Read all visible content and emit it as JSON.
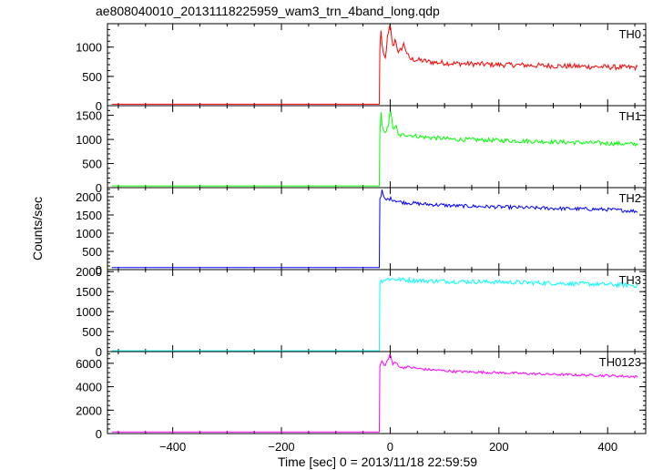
{
  "chart_data": {
    "type": "line",
    "title": "ae808040010_20131118225959_wam3_trn_4band_long.qdp",
    "xlabel": "Time [sec] 0 = 2013/11/18 22:59:59",
    "ylabel": "Counts/sec",
    "xlim": [
      -520,
      470
    ],
    "x_ticks": [
      -400,
      -200,
      0,
      200,
      400
    ],
    "trigger_time": -20,
    "x_end": 455,
    "panels": [
      {
        "name": "TH0",
        "color": "#ff0000",
        "ylim": [
          0,
          1400
        ],
        "y_ticks": [
          0,
          500,
          1000
        ],
        "pre_level": 25,
        "points": [
          [
            -20,
            25
          ],
          [
            -19,
            950
          ],
          [
            -17,
            1300
          ],
          [
            -14,
            900
          ],
          [
            -9,
            800
          ],
          [
            -5,
            1150
          ],
          [
            0,
            1380
          ],
          [
            5,
            1000
          ],
          [
            10,
            1150
          ],
          [
            15,
            880
          ],
          [
            25,
            1050
          ],
          [
            35,
            800
          ],
          [
            50,
            780
          ],
          [
            80,
            740
          ],
          [
            120,
            720
          ],
          [
            200,
            700
          ],
          [
            300,
            680
          ],
          [
            400,
            660
          ],
          [
            455,
            650
          ]
        ],
        "noise": 45
      },
      {
        "name": "TH1",
        "color": "#00ff00",
        "ylim": [
          0,
          1700
        ],
        "y_ticks": [
          0,
          500,
          1000,
          1500
        ],
        "pre_level": 35,
        "points": [
          [
            -20,
            35
          ],
          [
            -19,
            1150
          ],
          [
            -17,
            1550
          ],
          [
            -14,
            1200
          ],
          [
            -9,
            1100
          ],
          [
            -3,
            1300
          ],
          [
            0,
            1700
          ],
          [
            5,
            1200
          ],
          [
            10,
            1300
          ],
          [
            15,
            1080
          ],
          [
            30,
            1100
          ],
          [
            60,
            1050
          ],
          [
            120,
            1000
          ],
          [
            200,
            980
          ],
          [
            300,
            950
          ],
          [
            400,
            920
          ],
          [
            455,
            900
          ]
        ],
        "noise": 45
      },
      {
        "name": "TH2",
        "color": "#0000ff",
        "ylim": [
          0,
          2250
        ],
        "y_ticks": [
          0,
          500,
          1000,
          1500,
          2000
        ],
        "pre_level": 55,
        "points": [
          [
            -20,
            55
          ],
          [
            -19,
            1950
          ],
          [
            -15,
            2150
          ],
          [
            -10,
            1900
          ],
          [
            0,
            1950
          ],
          [
            20,
            1850
          ],
          [
            60,
            1800
          ],
          [
            120,
            1750
          ],
          [
            200,
            1720
          ],
          [
            300,
            1680
          ],
          [
            400,
            1650
          ],
          [
            455,
            1600
          ]
        ],
        "noise": 50
      },
      {
        "name": "TH3",
        "color": "#00ffff",
        "ylim": [
          0,
          2050
        ],
        "y_ticks": [
          0,
          500,
          1000,
          1500,
          2000
        ],
        "pre_level": 20,
        "points": [
          [
            -20,
            20
          ],
          [
            -19,
            1750
          ],
          [
            -10,
            1800
          ],
          [
            0,
            1820
          ],
          [
            40,
            1780
          ],
          [
            100,
            1760
          ],
          [
            200,
            1740
          ],
          [
            300,
            1710
          ],
          [
            400,
            1680
          ],
          [
            455,
            1650
          ]
        ],
        "noise": 55
      },
      {
        "name": "TH0123",
        "color": "#ff00ff",
        "ylim": [
          0,
          7000
        ],
        "y_ticks": [
          0,
          2000,
          4000,
          6000
        ],
        "pre_level": 130,
        "points": [
          [
            -20,
            130
          ],
          [
            -19,
            5800
          ],
          [
            -15,
            6200
          ],
          [
            -10,
            5700
          ],
          [
            0,
            6800
          ],
          [
            5,
            5900
          ],
          [
            10,
            6100
          ],
          [
            20,
            5600
          ],
          [
            30,
            5700
          ],
          [
            60,
            5500
          ],
          [
            120,
            5300
          ],
          [
            200,
            5200
          ],
          [
            300,
            5050
          ],
          [
            400,
            4950
          ],
          [
            455,
            4850
          ]
        ],
        "noise": 110
      }
    ]
  }
}
